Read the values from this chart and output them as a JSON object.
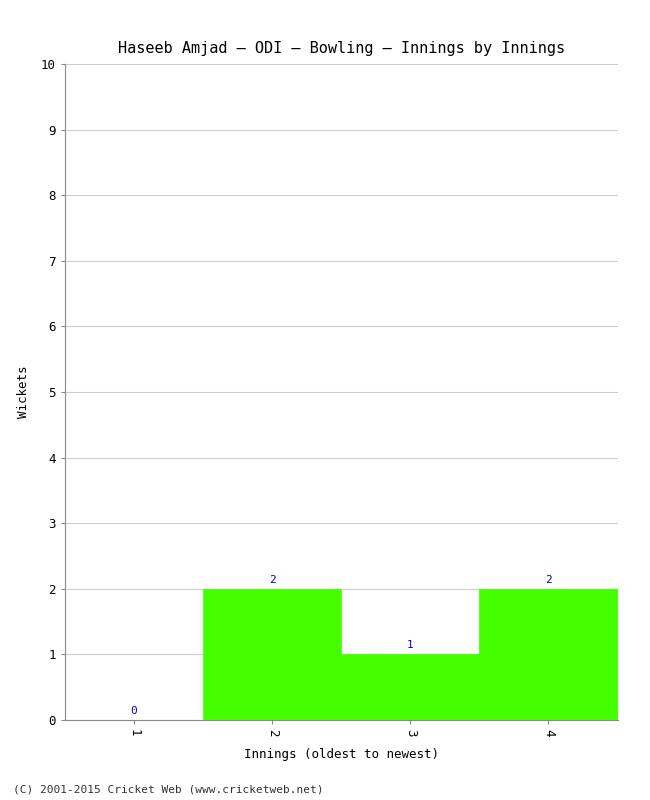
{
  "title": "Haseeb Amjad – ODI – Bowling – Innings by Innings",
  "xlabel": "Innings (oldest to newest)",
  "ylabel": "Wickets",
  "categories": [
    1,
    2,
    3,
    4
  ],
  "values": [
    0,
    2,
    1,
    2
  ],
  "bar_color": "#44ff00",
  "bar_edge_color": "#44ff00",
  "ylim": [
    0,
    10
  ],
  "yticks": [
    0,
    1,
    2,
    3,
    4,
    5,
    6,
    7,
    8,
    9,
    10
  ],
  "xticks": [
    1,
    2,
    3,
    4
  ],
  "background_color": "#ffffff",
  "grid_color": "#cccccc",
  "annotation_color": "#0000cc",
  "title_fontsize": 11,
  "label_fontsize": 9,
  "tick_fontsize": 9,
  "annotation_fontsize": 8,
  "footer": "(C) 2001-2015 Cricket Web (www.cricketweb.net)",
  "footer_fontsize": 8,
  "xlim": [
    0.5,
    4.5
  ]
}
